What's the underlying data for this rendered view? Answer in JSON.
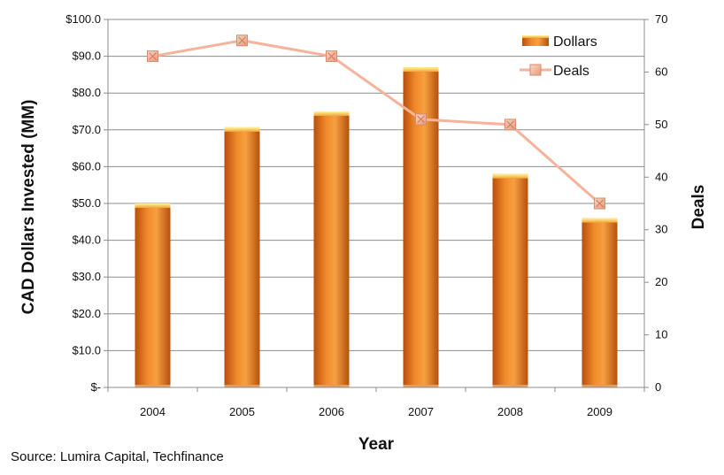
{
  "chart_data": {
    "type": "bar",
    "categories": [
      "2004",
      "2005",
      "2006",
      "2007",
      "2008",
      "2009"
    ],
    "series": [
      {
        "name": "Dollars",
        "type": "bar",
        "axis": "left",
        "color": "#ef7d1e",
        "values": [
          50.0,
          70.7,
          75.0,
          87.0,
          58.0,
          46.0
        ]
      },
      {
        "name": "Deals",
        "type": "line",
        "axis": "right",
        "color": "#f5b39b",
        "values": [
          63,
          66,
          63,
          51,
          50,
          35
        ]
      }
    ],
    "xlabel": "Year",
    "ylabel": "CAD Dollars Invested (MM)",
    "y2label": "Deals",
    "ylim": [
      0,
      100
    ],
    "y2lim": [
      0,
      70
    ],
    "yticks": [
      "$-",
      "$10.0",
      "$20.0",
      "$30.0",
      "$40.0",
      "$50.0",
      "$60.0",
      "$70.0",
      "$80.0",
      "$90.0",
      "$100.0"
    ],
    "y2ticks": [
      "0",
      "10",
      "20",
      "30",
      "40",
      "50",
      "60",
      "70"
    ],
    "grid": true,
    "legend": {
      "position": "top-right",
      "entries": [
        "Dollars",
        "Deals"
      ]
    },
    "source": "Source: Lumira Capital, Techfinance"
  }
}
